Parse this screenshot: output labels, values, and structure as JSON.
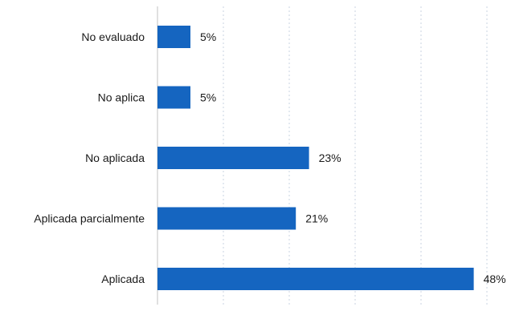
{
  "chart_data": {
    "type": "bar",
    "orientation": "horizontal",
    "categories": [
      "No evaluado",
      "No aplica",
      "No aplicada",
      "Aplicada parcialmente",
      "Aplicada"
    ],
    "values": [
      5,
      5,
      23,
      21,
      48
    ],
    "data_labels": [
      "5%",
      "5%",
      "23%",
      "21%",
      "48%"
    ],
    "unit": "%",
    "xlim": [
      0,
      50
    ],
    "grid": true,
    "legend": "none",
    "bar_color": "#1565c0"
  }
}
